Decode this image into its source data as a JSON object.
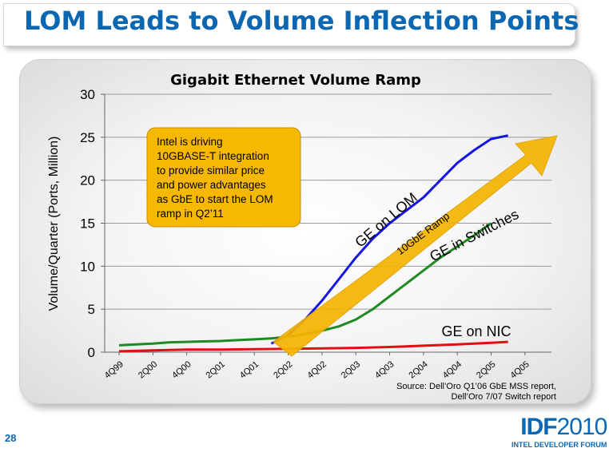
{
  "slide": {
    "title": "LOM Leads to Volume Inflection Points",
    "page_number": "28"
  },
  "logo": {
    "brand_bold": "IDF",
    "brand_year": "2010",
    "subtitle": "INTEL DEVELOPER FORUM"
  },
  "colors": {
    "title_blue": "#0b67b2",
    "lom_line": "#1515e0",
    "switch_line": "#1f8a1f",
    "nic_line": "#e01010",
    "callout_fill": "#f6b800",
    "arrow_fill": "#f5b400"
  },
  "chart_data": {
    "type": "line",
    "title": "Gigabit Ethernet Volume Ramp",
    "ylabel": "Volume/Quarter (Ports, Million)",
    "xlabel": "",
    "ylim": [
      0,
      30
    ],
    "yticks": [
      "0",
      "5",
      "10",
      "15",
      "20",
      "25",
      "30"
    ],
    "x_tick_labels": [
      "4Q99",
      "2Q00",
      "4Q00",
      "2Q01",
      "4Q01",
      "2Q02",
      "4Q02",
      "2Q03",
      "4Q03",
      "2Q04",
      "4Q04",
      "2Q05",
      "4Q05"
    ],
    "grid": true,
    "series": [
      {
        "name": "GE on LOM",
        "color": "#1515e0",
        "points": [
          [
            4.5,
            1.0
          ],
          [
            5,
            2.0
          ],
          [
            5.5,
            3.8
          ],
          [
            6,
            6.0
          ],
          [
            6.5,
            8.5
          ],
          [
            7,
            11.0
          ],
          [
            7.5,
            13.2
          ],
          [
            8,
            15.0
          ],
          [
            8.5,
            16.5
          ],
          [
            9,
            18.0
          ],
          [
            9.5,
            20.0
          ],
          [
            10,
            22.0
          ],
          [
            10.5,
            23.5
          ],
          [
            11,
            24.8
          ],
          [
            11.5,
            25.2
          ]
        ]
      },
      {
        "name": "GE in Switches",
        "color": "#1f8a1f",
        "points": [
          [
            0,
            0.8
          ],
          [
            0.5,
            0.9
          ],
          [
            1,
            1.0
          ],
          [
            1.5,
            1.15
          ],
          [
            2,
            1.2
          ],
          [
            2.5,
            1.25
          ],
          [
            3,
            1.3
          ],
          [
            3.5,
            1.4
          ],
          [
            4,
            1.5
          ],
          [
            4.5,
            1.6
          ],
          [
            5,
            1.8
          ],
          [
            5.5,
            2.1
          ],
          [
            6,
            2.5
          ],
          [
            6.5,
            3.0
          ],
          [
            7,
            3.8
          ],
          [
            7.5,
            5.0
          ],
          [
            8,
            6.5
          ],
          [
            8.5,
            8.0
          ],
          [
            9,
            9.5
          ],
          [
            9.5,
            11.0
          ],
          [
            10,
            12.3
          ],
          [
            10.5,
            13.6
          ],
          [
            11,
            15.0
          ]
        ]
      },
      {
        "name": "GE on NIC",
        "color": "#e01010",
        "points": [
          [
            0,
            0.1
          ],
          [
            1,
            0.2
          ],
          [
            2,
            0.3
          ],
          [
            3,
            0.3
          ],
          [
            4,
            0.35
          ],
          [
            5,
            0.4
          ],
          [
            6,
            0.45
          ],
          [
            7,
            0.5
          ],
          [
            8,
            0.6
          ],
          [
            9,
            0.75
          ],
          [
            10,
            0.9
          ],
          [
            11,
            1.1
          ],
          [
            11.5,
            1.2
          ]
        ]
      }
    ],
    "series_labels": [
      "GE on LOM",
      "GE in Switches",
      "GE on NIC"
    ],
    "callout": "Intel is driving 10GBASE-T integration to provide similar price and power advantages as GbE to start the LOM ramp in Q2’11",
    "arrow_label": "10GbE Ramp",
    "source_line1": "Source: Dell’Oro Q1’06 GbE MSS report,",
    "source_line2": "Dell’Oro 7/07 Switch report"
  }
}
